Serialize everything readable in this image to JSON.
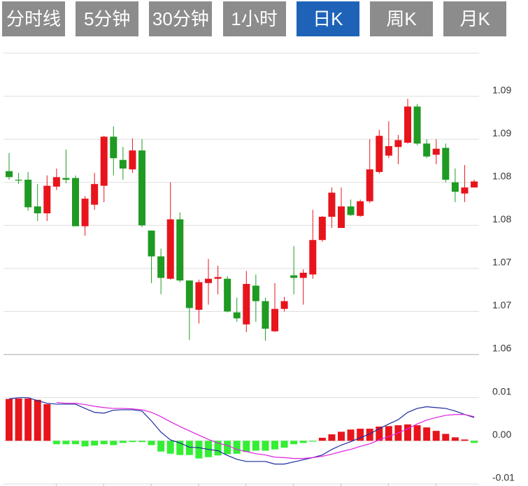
{
  "tabs": [
    {
      "label": "分时线"
    },
    {
      "label": "5分钟"
    },
    {
      "label": "30分钟"
    },
    {
      "label": "1小时"
    },
    {
      "label": "日K",
      "active": true
    },
    {
      "label": "周K"
    },
    {
      "label": "月K"
    }
  ],
  "chart_data": [
    {
      "type": "candlestick",
      "up_color": "#e8141c",
      "down_color": "#1f9a22",
      "grid": true,
      "ylim": [
        1.06,
        1.095
      ],
      "yticks": [
        1.06,
        {
          "value": 1.065,
          "label": "1.07"
        },
        1.07,
        {
          "value": 1.075,
          "label": "1.08"
        },
        1.08,
        {
          "value": 1.085,
          "label": "1.09"
        },
        1.09
      ],
      "open": [
        1.0813,
        1.0803,
        1.0803,
        1.0772,
        1.0764,
        1.0795,
        1.0805,
        1.0805,
        1.0749,
        1.0774,
        1.0796,
        1.0853,
        1.0826,
        1.0815,
        1.0837,
        1.0744,
        1.0714,
        1.0688,
        1.0757,
        1.0686,
        1.0652,
        1.0683,
        1.0688,
        1.0688,
        1.0649,
        1.0635,
        1.068,
        1.0662,
        1.0627,
        1.0653,
        1.0692,
        1.0689,
        1.0693,
        1.0733,
        1.076,
        1.0747,
        1.0772,
        1.0761,
        1.0778,
        1.0812,
        1.0831,
        1.0841,
        1.0846,
        1.0888,
        1.0845,
        1.0832,
        1.084,
        1.08,
        1.0787,
        1.0794
      ],
      "close": [
        1.0806,
        1.0802,
        1.0771,
        1.0764,
        1.0796,
        1.0806,
        1.0803,
        1.0749,
        1.0781,
        1.0798,
        1.0853,
        1.0828,
        1.0816,
        1.0837,
        1.075,
        1.0714,
        1.0689,
        1.0757,
        1.0686,
        1.0654,
        1.0684,
        1.0688,
        1.069,
        1.065,
        1.0642,
        1.0682,
        1.0662,
        1.063,
        1.0653,
        1.0662,
        1.0689,
        1.0695,
        1.0733,
        1.076,
        1.0788,
        1.0772,
        1.0762,
        1.0778,
        1.0815,
        1.0854,
        1.0842,
        1.0849,
        1.0888,
        1.0845,
        1.083,
        1.0839,
        1.0803,
        1.0789,
        1.0794,
        1.0801
      ],
      "high": [
        1.0834,
        1.0811,
        1.0812,
        1.0798,
        1.0808,
        1.0816,
        1.0838,
        1.0808,
        1.0784,
        1.0811,
        1.0854,
        1.0865,
        1.0841,
        1.0851,
        1.085,
        1.0744,
        1.0723,
        1.08,
        1.0765,
        1.0686,
        1.0687,
        1.0711,
        1.0703,
        1.0691,
        1.0666,
        1.0697,
        1.0693,
        1.0666,
        1.0683,
        1.0667,
        1.0726,
        1.0699,
        1.0768,
        1.0761,
        1.0794,
        1.0794,
        1.078,
        1.078,
        1.085,
        1.0861,
        1.0871,
        1.0855,
        1.0897,
        1.0891,
        1.085,
        1.085,
        1.0845,
        1.0816,
        1.082,
        1.0803
      ],
      "low": [
        1.0803,
        1.0798,
        1.0767,
        1.0755,
        1.0755,
        1.0791,
        1.0799,
        1.0749,
        1.0738,
        1.0768,
        1.0777,
        1.0808,
        1.0803,
        1.0811,
        1.0748,
        1.0683,
        1.067,
        1.0687,
        1.0684,
        1.0617,
        1.0636,
        1.0658,
        1.067,
        1.0649,
        1.0638,
        1.0626,
        1.0638,
        1.0616,
        1.0626,
        1.065,
        1.067,
        1.0658,
        1.0688,
        1.0731,
        1.0747,
        1.0747,
        1.0761,
        1.076,
        1.0776,
        1.081,
        1.0828,
        1.0821,
        1.0845,
        1.0843,
        1.0828,
        1.0821,
        1.08,
        1.0777,
        1.0777,
        1.0794
      ]
    },
    {
      "type": "macd",
      "grid": true,
      "ylim": [
        -0.01,
        0.02
      ],
      "yticks": [
        -0.01,
        {
          "value": 0,
          "label": "0.00"
        },
        0.01
      ],
      "histogram": {
        "up_color": "#e8141c",
        "down_color": "#33ee33",
        "values": [
          0.0097,
          0.0098,
          0.0098,
          0.0095,
          0.0085,
          -0.0008,
          -0.0008,
          -0.0008,
          -0.0013,
          -0.0011,
          -0.0008,
          -0.001,
          -0.0005,
          -0.0003,
          -0.0003,
          -0.001,
          -0.0025,
          -0.003,
          -0.0033,
          -0.0033,
          -0.0041,
          -0.0038,
          -0.0034,
          -0.0031,
          -0.003,
          -0.0026,
          -0.0023,
          -0.0023,
          -0.002,
          -0.0016,
          -0.0008,
          -0.0005,
          -0.0002,
          0.0007,
          0.0015,
          0.0021,
          0.0026,
          0.0028,
          0.0028,
          0.0033,
          0.0034,
          0.0036,
          0.0038,
          0.0036,
          0.0031,
          0.0023,
          0.0016,
          0.0008,
          0.0003,
          -0.0005
        ]
      },
      "lines": [
        {
          "color": "#1c2a9e",
          "values": [
            0.0097,
            0.01,
            0.01,
            0.0093,
            0.0087,
            0.0085,
            0.0085,
            0.0085,
            0.0075,
            0.0066,
            0.0064,
            0.0071,
            0.0072,
            0.0072,
            0.0069,
            0.0046,
            0.002,
            0.0002,
            -0.0005,
            -0.0015,
            -0.0016,
            -0.002,
            -0.0023,
            -0.0034,
            -0.0043,
            -0.0048,
            -0.0048,
            -0.0048,
            -0.0054,
            -0.0054,
            -0.0049,
            -0.0044,
            -0.0039,
            -0.0033,
            -0.002,
            -0.001,
            -0.0002,
            0.0007,
            0.0016,
            0.0028,
            0.0039,
            0.0049,
            0.0066,
            0.0075,
            0.0079,
            0.0077,
            0.0075,
            0.0069,
            0.0061,
            0.0054
          ]
        },
        {
          "color": "#e020e0",
          "values": [
            null,
            null,
            null,
            null,
            null,
            0.0089,
            0.0087,
            0.0087,
            0.0084,
            0.008,
            0.0077,
            0.0075,
            0.0075,
            0.0074,
            0.0072,
            0.0066,
            0.0056,
            0.0044,
            0.0033,
            0.0023,
            0.0013,
            0.0003,
            -0.0005,
            -0.0011,
            -0.002,
            -0.0025,
            -0.003,
            -0.0033,
            -0.0038,
            -0.0039,
            -0.0041,
            -0.0041,
            -0.0039,
            -0.0036,
            -0.0031,
            -0.0025,
            -0.002,
            -0.0013,
            -0.0007,
            0.0002,
            0.001,
            0.0018,
            0.0028,
            0.0039,
            0.0048,
            0.0054,
            0.0059,
            0.0061,
            0.0061,
            0.0056
          ]
        }
      ]
    }
  ]
}
